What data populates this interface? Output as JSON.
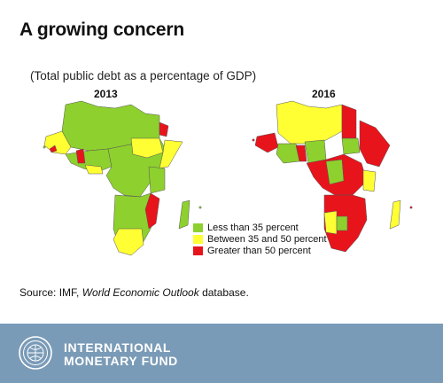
{
  "title": "A growing concern",
  "subtitle": "(Total public debt as a percentage of GDP)",
  "maps": [
    {
      "year": "2013"
    },
    {
      "year": "2016"
    }
  ],
  "legend": {
    "items": [
      {
        "label": "Less than 35 percent",
        "color": "#8ed02e"
      },
      {
        "label": "Between 35 and 50 percent",
        "color": "#ffff33"
      },
      {
        "label": "Greater than 50 percent",
        "color": "#e8141c"
      }
    ]
  },
  "source": {
    "prefix": "Source: IMF, ",
    "italic": "World Economic Outlook",
    "suffix": " database."
  },
  "footer": {
    "line1": "INTERNATIONAL",
    "line2": "MONETARY FUND",
    "background": "#7a9bb7",
    "logo_icon": "imf-seal-icon"
  }
}
